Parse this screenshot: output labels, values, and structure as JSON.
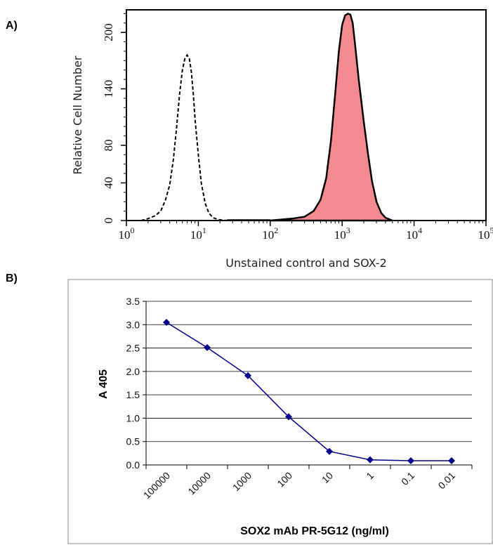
{
  "panels": {
    "a_label": "A)",
    "b_label": "B)"
  },
  "chart_data": [
    {
      "type": "area",
      "xlabel": "Unstained control and SOX-2",
      "ylabel": "Relative Cell Number",
      "xscale": "log",
      "xlim": [
        1,
        100000
      ],
      "ylim": [
        0,
        224
      ],
      "x_ticks": [
        1,
        10,
        100,
        1000,
        10000,
        100000
      ],
      "y_ticks": [
        0,
        40,
        80,
        140,
        200
      ],
      "series": [
        {
          "style": "dashed-outline",
          "color": "#000000",
          "x": [
            1.6,
            2.0,
            2.5,
            3.0,
            3.5,
            4.0,
            4.5,
            5.0,
            5.5,
            6.0,
            6.5,
            7.0,
            7.5,
            8.0,
            8.5,
            9.0,
            10.0,
            11.0,
            12.5,
            14.0,
            16.0,
            19.0,
            25.0
          ],
          "y": [
            0,
            2,
            5,
            10,
            22,
            38,
            65,
            100,
            135,
            160,
            172,
            176,
            172,
            158,
            135,
            108,
            70,
            40,
            18,
            8,
            3,
            1,
            0
          ]
        },
        {
          "style": "filled",
          "color": "#f48a8f",
          "x": [
            100,
            200,
            300,
            400,
            500,
            600,
            700,
            800,
            900,
            1000,
            1100,
            1200,
            1300,
            1400,
            1500,
            1700,
            2000,
            2300,
            2600,
            3000,
            3500,
            4000,
            5000
          ],
          "y": [
            0,
            2,
            4,
            10,
            22,
            45,
            85,
            135,
            180,
            208,
            218,
            220,
            219,
            210,
            190,
            150,
            105,
            70,
            42,
            20,
            8,
            3,
            0
          ]
        }
      ]
    },
    {
      "type": "line",
      "xlabel": "SOX2 mAb PR-5G12 (ng/ml)",
      "ylabel": "A 405",
      "categories": [
        "100000",
        "10000",
        "1000",
        "100",
        "10",
        "1",
        "0.1",
        "0.01"
      ],
      "series": [
        {
          "color": "#00008b",
          "values": [
            3.05,
            2.51,
            1.91,
            1.03,
            0.29,
            0.11,
            0.09,
            0.09
          ]
        }
      ],
      "ylim": [
        0,
        3.5
      ],
      "y_ticks": [
        "0.0",
        "0.5",
        "1.0",
        "1.5",
        "2.0",
        "2.5",
        "3.0",
        "3.5"
      ],
      "grid": true
    }
  ]
}
